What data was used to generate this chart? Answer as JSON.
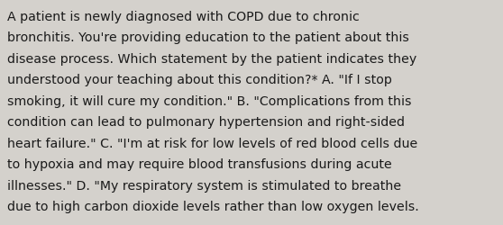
{
  "background_color": "#d4d1cc",
  "text_color": "#1a1a1a",
  "font_size": 10.2,
  "font_family": "DejaVu Sans",
  "lines": [
    "A patient is newly diagnosed with COPD due to chronic",
    "bronchitis. You're providing education to the patient about this",
    "disease process. Which statement by the patient indicates they",
    "understood your teaching about this condition?* A. \"If I stop",
    "smoking, it will cure my condition.\" B. \"Complications from this",
    "condition can lead to pulmonary hypertension and right-sided",
    "heart failure.\" C. \"I'm at risk for low levels of red blood cells due",
    "to hypoxia and may require blood transfusions during acute",
    "illnesses.\" D. \"My respiratory system is stimulated to breathe",
    "due to high carbon dioxide levels rather than low oxygen levels."
  ],
  "fig_width": 5.58,
  "fig_height": 2.51,
  "dpi": 100
}
